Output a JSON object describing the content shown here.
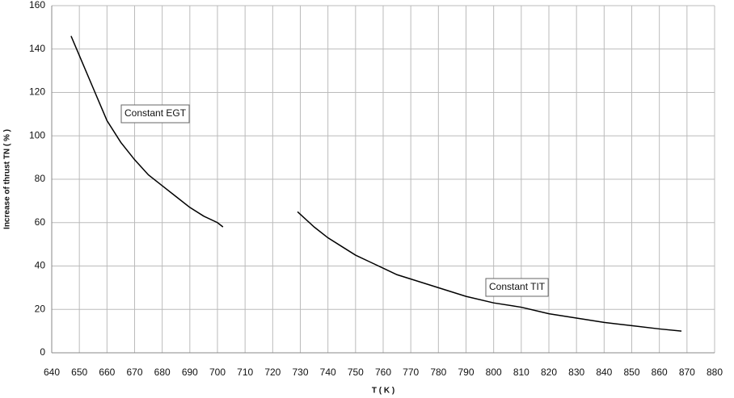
{
  "chart_data": {
    "type": "line",
    "x_label": "T ( K )",
    "y_label": "Increase of thrust TN ( % )",
    "xlim": [
      640,
      880
    ],
    "xticks": [
      640,
      650,
      660,
      670,
      680,
      690,
      700,
      710,
      720,
      730,
      740,
      750,
      760,
      770,
      780,
      790,
      800,
      810,
      820,
      830,
      840,
      850,
      860,
      870,
      880
    ],
    "ylim": [
      0,
      160
    ],
    "yticks": [
      0,
      20,
      40,
      60,
      80,
      100,
      120,
      140,
      160
    ],
    "grid": true,
    "series": [
      {
        "name": "Constant EGT",
        "color": "#000000",
        "x": [
          647,
          650,
          655,
          660,
          665,
          670,
          675,
          680,
          685,
          690,
          695,
          700,
          702
        ],
        "values": [
          146,
          137,
          122,
          107,
          97,
          89,
          82,
          77,
          72,
          67,
          63,
          60,
          58
        ]
      },
      {
        "name": "Constant TIT",
        "color": "#000000",
        "x": [
          729,
          735,
          740,
          745,
          750,
          755,
          760,
          765,
          770,
          780,
          790,
          800,
          810,
          820,
          830,
          840,
          850,
          860,
          868
        ],
        "values": [
          65,
          58,
          53,
          49,
          45,
          42,
          39,
          36,
          34,
          30,
          26,
          23,
          21,
          18,
          16,
          14,
          12.5,
          11,
          10
        ]
      }
    ]
  }
}
